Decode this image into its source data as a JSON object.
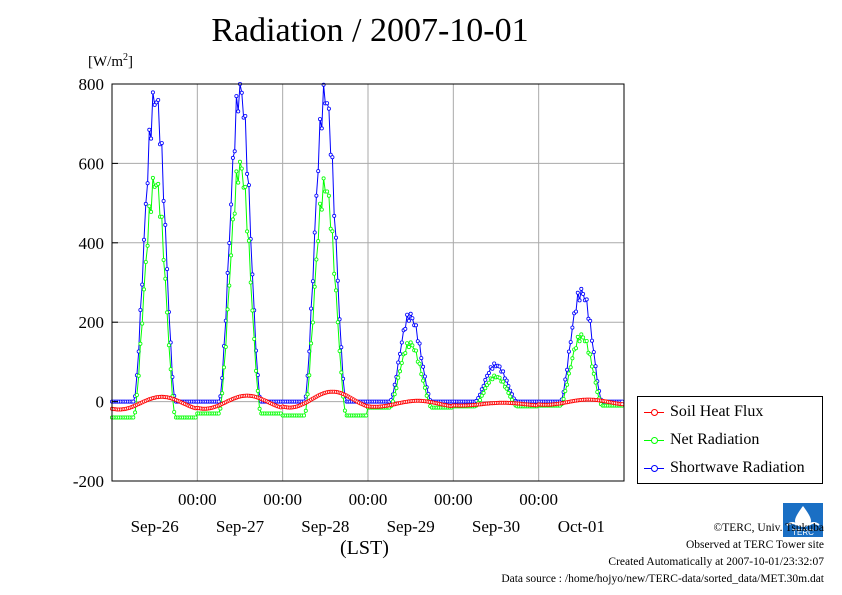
{
  "title": "Radiation / 2007-10-01",
  "unit_label": "[W/m",
  "unit_sup": "2",
  "unit_close": "]",
  "xaxis_label": "(LST)",
  "legend": [
    {
      "label": "Soil Heat Flux",
      "color": "#ff0000"
    },
    {
      "label": "Net Radiation",
      "color": "#00ff00"
    },
    {
      "label": "Shortwave Radiation",
      "color": "#0000ff"
    }
  ],
  "footer": {
    "copyright": "©TERC, Univ. Tsukuba",
    "observed": "Observed at TERC Tower site",
    "created": "Created Automatically at 2007-10-01/23:32:07",
    "source": "Data source : /home/hojyo/new/TERC-data/sorted_data/MET.30m.dat"
  },
  "logo_text": "TERC",
  "chart_data": {
    "type": "line",
    "title": "Radiation / 2007-10-01",
    "ylabel": "[W/m2]",
    "xlabel": "(LST)",
    "ylim": [
      -200,
      800
    ],
    "yticks": [
      -200,
      0,
      200,
      400,
      600,
      800
    ],
    "x_range_days": [
      0,
      6
    ],
    "x_time_ticks": [
      "00:00",
      "00:00",
      "00:00",
      "00:00",
      "00:00"
    ],
    "x_date_labels": [
      "Sep-26",
      "Sep-27",
      "Sep-28",
      "Sep-29",
      "Sep-30",
      "Oct-01"
    ],
    "grid": true,
    "legend_position": "bottom-right, outside plot",
    "series": [
      {
        "name": "Soil Heat Flux",
        "color": "#ff0000",
        "daily_peak": [
          12,
          15,
          25,
          2,
          -3,
          5
        ],
        "night_min": [
          -20,
          -18,
          -15,
          -13,
          -10,
          -8
        ]
      },
      {
        "name": "Net Radiation",
        "color": "#00ff00",
        "daily_peak": [
          550,
          570,
          525,
          145,
          65,
          170
        ],
        "night_min": [
          -40,
          -30,
          -35,
          -15,
          -12,
          -10
        ]
      },
      {
        "name": "Shortwave Radiation",
        "color": "#0000ff",
        "daily_peak": [
          760,
          755,
          745,
          215,
          95,
          285
        ],
        "night_min": [
          0,
          0,
          0,
          0,
          0,
          0
        ]
      }
    ]
  }
}
